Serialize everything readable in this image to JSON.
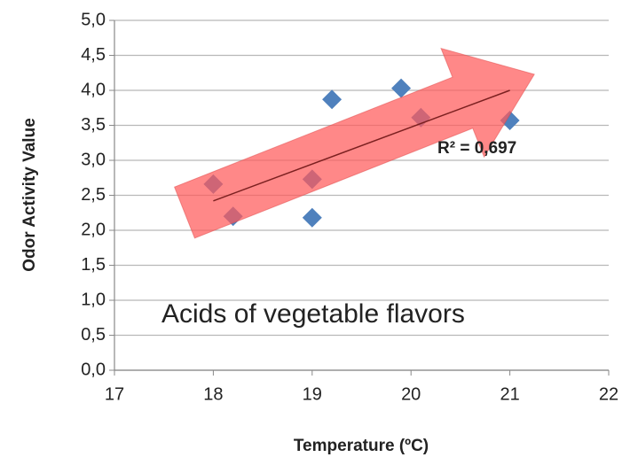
{
  "chart_data": {
    "type": "scatter",
    "title": "Acids of vegetable flavors",
    "x_label": "Temperature (ºC)",
    "y_label": "Odor Activity Value",
    "annotation": "R² = 0,697",
    "series": [
      {
        "name": "Acids of vegetable flavors",
        "color": "#4f81bd",
        "x": [
          18.0,
          18.2,
          19.0,
          19.0,
          19.2,
          19.9,
          20.1,
          21.0
        ],
        "values": [
          2.66,
          2.2,
          2.73,
          2.18,
          3.87,
          4.03,
          3.61,
          3.57
        ]
      }
    ],
    "trendline": {
      "color": "#7b2020",
      "x": [
        18,
        21
      ],
      "values": [
        2.42,
        4.0
      ]
    },
    "xlim": [
      17,
      22
    ],
    "xticks": [
      17,
      18,
      19,
      20,
      21,
      22
    ],
    "ylim": [
      0,
      5
    ],
    "yticks": [
      {
        "value": 0,
        "label": "0,0"
      },
      {
        "value": 0.5,
        "label": "0,5"
      },
      {
        "value": 1,
        "label": "1,0"
      },
      {
        "value": 1.5,
        "label": "1,5"
      },
      {
        "value": 2,
        "label": "2,0"
      },
      {
        "value": 2.5,
        "label": "2,5"
      },
      {
        "value": 3,
        "label": "3,0"
      },
      {
        "value": 3.5,
        "label": "3,5"
      },
      {
        "value": 4,
        "label": "4,0"
      },
      {
        "value": 4.5,
        "label": "4,5"
      },
      {
        "value": 5,
        "label": "5,0"
      }
    ],
    "grid": true
  }
}
